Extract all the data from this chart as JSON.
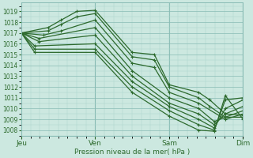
{
  "bg_color": "#cce8e0",
  "grid_color_minor": "#aad4cc",
  "grid_color_major": "#88bbb4",
  "line_color": "#2d6a2d",
  "xlabel": "Pression niveau de la mer( hPa )",
  "xlabel_color": "#2d6a2d",
  "tick_color": "#2d6a2d",
  "xtick_labels": [
    "Jeu",
    "Ven",
    "Sam",
    "Dim"
  ],
  "xtick_positions": [
    0.0,
    0.333,
    0.667,
    1.0
  ],
  "ylim": [
    1007.5,
    1019.8
  ],
  "yticks": [
    1008,
    1009,
    1010,
    1011,
    1012,
    1013,
    1014,
    1015,
    1016,
    1017,
    1018,
    1019
  ],
  "series": [
    {
      "x": [
        0.0,
        0.12,
        0.18,
        0.25,
        0.333,
        0.5,
        0.6,
        0.667,
        0.8,
        0.85,
        0.92,
        1.0
      ],
      "y": [
        1017.0,
        1017.5,
        1018.2,
        1019.0,
        1019.1,
        1015.2,
        1015.0,
        1012.2,
        1011.5,
        1010.8,
        1009.5,
        1009.4
      ]
    },
    {
      "x": [
        0.0,
        0.12,
        0.18,
        0.25,
        0.333,
        0.5,
        0.6,
        0.667,
        0.8,
        0.85,
        0.92,
        1.0
      ],
      "y": [
        1017.0,
        1017.2,
        1017.8,
        1018.5,
        1018.8,
        1014.8,
        1014.5,
        1012.0,
        1011.0,
        1010.2,
        1009.2,
        1009.2
      ]
    },
    {
      "x": [
        0.0,
        0.1,
        0.18,
        0.333,
        0.5,
        0.6,
        0.667,
        0.8,
        0.92,
        1.0
      ],
      "y": [
        1017.0,
        1016.8,
        1017.2,
        1018.2,
        1014.2,
        1013.8,
        1011.5,
        1010.5,
        1009.0,
        1009.5
      ]
    },
    {
      "x": [
        0.0,
        0.08,
        0.333,
        0.5,
        0.667,
        0.8,
        0.87,
        0.92,
        1.0
      ],
      "y": [
        1017.0,
        1016.5,
        1017.5,
        1013.5,
        1011.0,
        1010.0,
        1008.8,
        1009.2,
        1009.8
      ]
    },
    {
      "x": [
        0.0,
        0.08,
        0.333,
        0.5,
        0.667,
        0.8,
        0.87,
        0.92,
        1.0
      ],
      "y": [
        1017.0,
        1016.2,
        1016.8,
        1013.0,
        1010.5,
        1009.5,
        1008.5,
        1009.5,
        1010.2
      ]
    },
    {
      "x": [
        0.0,
        0.06,
        0.333,
        0.5,
        0.667,
        0.8,
        0.87,
        0.92,
        1.0
      ],
      "y": [
        1017.0,
        1015.8,
        1016.0,
        1012.5,
        1010.2,
        1009.0,
        1008.2,
        1010.0,
        1010.8
      ]
    },
    {
      "x": [
        0.0,
        0.06,
        0.333,
        0.5,
        0.667,
        0.8,
        0.87,
        0.92,
        1.0
      ],
      "y": [
        1017.0,
        1015.5,
        1015.5,
        1012.0,
        1009.8,
        1008.5,
        1008.0,
        1010.8,
        1011.0
      ]
    },
    {
      "x": [
        0.0,
        0.06,
        0.333,
        0.5,
        0.667,
        0.8,
        0.87,
        0.92,
        1.0
      ],
      "y": [
        1017.0,
        1015.2,
        1015.2,
        1011.5,
        1009.3,
        1008.0,
        1007.9,
        1011.2,
        1009.0
      ]
    }
  ]
}
